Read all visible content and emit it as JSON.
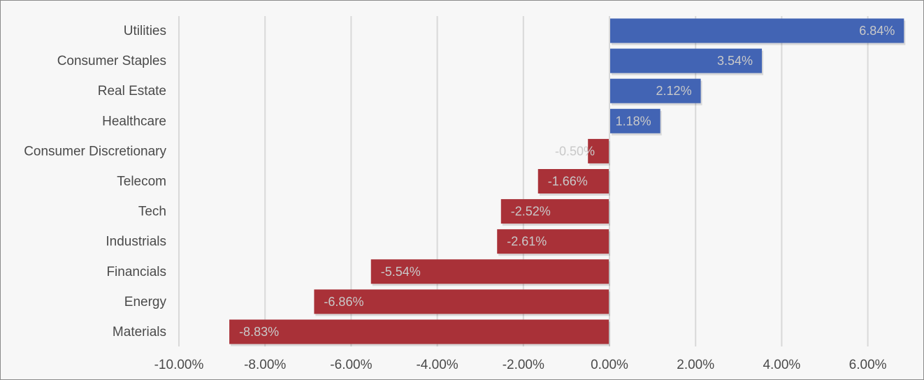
{
  "chart_data": {
    "type": "bar",
    "orientation": "horizontal",
    "categories": [
      "Utilities",
      "Consumer Staples",
      "Real Estate",
      "Healthcare",
      "Consumer Discretionary",
      "Telecom",
      "Tech",
      "Industrials",
      "Financials",
      "Energy",
      "Materials"
    ],
    "values": [
      6.84,
      3.54,
      2.12,
      1.18,
      -0.5,
      -1.66,
      -2.52,
      -2.61,
      -5.54,
      -6.86,
      -8.83
    ],
    "data_labels": [
      "6.84%",
      "3.54%",
      "2.12%",
      "1.18%",
      "-0.50%",
      "-1.66%",
      "-2.52%",
      "-2.61%",
      "-5.54%",
      "-6.86%",
      "-8.83%"
    ],
    "x_ticks": [
      -10,
      -8,
      -6,
      -4,
      -2,
      0,
      2,
      4,
      6
    ],
    "x_tick_labels": [
      "-10.00%",
      "-8.00%",
      "-6.00%",
      "-4.00%",
      "-2.00%",
      "0.00%",
      "2.00%",
      "4.00%",
      "6.00%"
    ],
    "xlim": [
      -10,
      7
    ],
    "grid": true,
    "legend": "none",
    "colors": {
      "positive": "#4264b4",
      "negative": "#a93138",
      "grid": "#d9d9d9",
      "label_text": "#4a4a4a",
      "data_label_text": "#c9c9c9"
    }
  }
}
